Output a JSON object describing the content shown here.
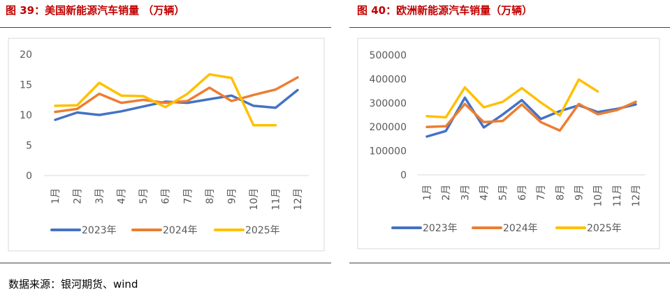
{
  "panels": {
    "left": {
      "title": "图 39：美国新能源汽车销量 （万辆）"
    },
    "right": {
      "title": "图 40：欧洲新能源汽车销量（万辆）"
    }
  },
  "source_note": "数据来源：银河期货、wind",
  "chart_data": [
    {
      "type": "line",
      "title": "图 39：美国新能源汽车销量 （万辆）",
      "categories": [
        "1月",
        "2月",
        "3月",
        "4月",
        "5月",
        "6月",
        "7月",
        "8月",
        "9月",
        "10月",
        "11月",
        "12月"
      ],
      "ylim": [
        0,
        20
      ],
      "yticks": [
        0,
        5,
        10,
        15,
        20
      ],
      "grid": false,
      "legend": "bottom",
      "series": [
        {
          "name": "2023年",
          "color": "#4472c4",
          "values": [
            9.2,
            10.4,
            10.0,
            10.6,
            11.4,
            12.2,
            12.0,
            12.6,
            13.2,
            11.5,
            11.2,
            14.1
          ]
        },
        {
          "name": "2024年",
          "color": "#ed7d31",
          "values": [
            10.5,
            11.0,
            13.5,
            12.0,
            12.5,
            12.0,
            12.3,
            14.5,
            12.3,
            13.3,
            14.2,
            16.2
          ]
        },
        {
          "name": "2025年",
          "color": "#ffc000",
          "values": [
            11.5,
            11.6,
            15.3,
            13.2,
            13.1,
            11.3,
            13.5,
            16.7,
            16.1,
            8.3,
            8.3,
            null
          ]
        }
      ]
    },
    {
      "type": "line",
      "title": "图 40：欧洲新能源汽车销量（万辆）",
      "categories": [
        "1月",
        "2月",
        "3月",
        "4月",
        "5月",
        "6月",
        "7月",
        "8月",
        "9月",
        "10月",
        "11月",
        "12月"
      ],
      "ylim": [
        0,
        500000
      ],
      "yticks": [
        0,
        100000,
        200000,
        300000,
        400000,
        500000
      ],
      "grid": false,
      "legend": "bottom",
      "series": [
        {
          "name": "2023年",
          "color": "#4472c4",
          "values": [
            160000,
            183000,
            322000,
            198000,
            252000,
            312000,
            233000,
            266000,
            290000,
            262000,
            275000,
            294000
          ]
        },
        {
          "name": "2024年",
          "color": "#ed7d31",
          "values": [
            200000,
            203000,
            296000,
            220000,
            225000,
            294000,
            220000,
            185000,
            296000,
            253000,
            270000,
            305000
          ]
        },
        {
          "name": "2025年",
          "color": "#ffc000",
          "values": [
            245000,
            240000,
            365000,
            282000,
            305000,
            362000,
            302000,
            248000,
            398000,
            348000,
            null,
            null
          ]
        }
      ]
    }
  ]
}
